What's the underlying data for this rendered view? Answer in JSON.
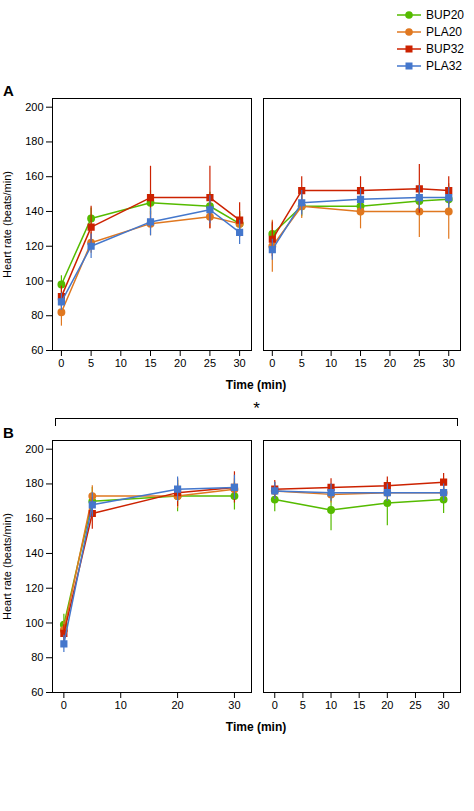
{
  "chart_data": [
    {
      "type": "line",
      "title": "A",
      "ylabel": "Heart rate (beats/min)",
      "xlabel": "Time (min)",
      "legend": "upper right",
      "x": [
        0,
        5,
        15,
        25,
        30
      ],
      "xlim": [
        -1.5,
        32
      ],
      "xticks": [
        0,
        5,
        10,
        15,
        20,
        25,
        30
      ],
      "ylim": [
        60,
        205
      ],
      "yticks": [
        60,
        80,
        100,
        120,
        140,
        160,
        180,
        200
      ],
      "series": [
        {
          "name": "BUP20",
          "color": "#55bb00",
          "marker": "circle",
          "values": [
            98,
            136,
            145,
            143,
            133
          ],
          "errors": [
            5,
            6,
            7,
            8,
            7
          ]
        },
        {
          "name": "PLA20",
          "color": "#e07820",
          "marker": "circle",
          "values": [
            82,
            122,
            133,
            137,
            133
          ],
          "errors": [
            8,
            6,
            7,
            7,
            6
          ]
        },
        {
          "name": "BUP32",
          "color": "#cc2200",
          "marker": "square",
          "values": [
            91,
            131,
            148,
            148,
            135
          ],
          "errors": [
            6,
            12,
            18,
            18,
            10
          ]
        },
        {
          "name": "PLA32",
          "color": "#4477cc",
          "marker": "square",
          "values": [
            88,
            120,
            134,
            141,
            128
          ],
          "errors": [
            5,
            7,
            8,
            8,
            7
          ]
        }
      ]
    },
    {
      "type": "line",
      "tick_labels": "x",
      "x": [
        0,
        5,
        15,
        25,
        30
      ],
      "xlim": [
        -1.5,
        32
      ],
      "xticks": [
        0,
        5,
        10,
        15,
        20,
        25,
        30
      ],
      "ylim": [
        60,
        205
      ],
      "series": [
        {
          "name": "BUP20",
          "color": "#55bb00",
          "marker": "circle",
          "values": [
            127,
            143,
            143,
            146,
            147
          ],
          "errors": [
            6,
            6,
            6,
            6,
            6
          ]
        },
        {
          "name": "PLA20",
          "color": "#e07820",
          "marker": "circle",
          "values": [
            120,
            143,
            140,
            140,
            140
          ],
          "errors": [
            15,
            7,
            10,
            15,
            16
          ]
        },
        {
          "name": "BUP32",
          "color": "#cc2200",
          "marker": "square",
          "values": [
            124,
            152,
            152,
            153,
            152
          ],
          "errors": [
            10,
            8,
            8,
            14,
            8
          ]
        },
        {
          "name": "PLA32",
          "color": "#4477cc",
          "marker": "square",
          "values": [
            118,
            145,
            147,
            148,
            148
          ],
          "errors": [
            6,
            7,
            6,
            7,
            6
          ]
        }
      ]
    },
    {
      "type": "line",
      "title": "B",
      "ylabel": "Heart rate (beats/min)",
      "xlabel": "Time (min)",
      "annotations": [
        "*"
      ],
      "x": [
        0,
        5,
        20,
        30
      ],
      "xlim": [
        -2,
        33
      ],
      "xticks": [
        0,
        10,
        20,
        30
      ],
      "ylim": [
        60,
        205
      ],
      "yticks": [
        60,
        80,
        100,
        120,
        140,
        160,
        180,
        200
      ],
      "series": [
        {
          "name": "BUP20",
          "color": "#55bb00",
          "marker": "circle",
          "values": [
            99,
            170,
            173,
            173
          ],
          "errors": [
            6,
            8,
            9,
            8
          ]
        },
        {
          "name": "PLA20",
          "color": "#e07820",
          "marker": "circle",
          "values": [
            96,
            173,
            173,
            177
          ],
          "errors": [
            5,
            6,
            7,
            6
          ]
        },
        {
          "name": "BUP32",
          "color": "#cc2200",
          "marker": "square",
          "values": [
            94,
            163,
            175,
            178
          ],
          "errors": [
            5,
            9,
            8,
            9
          ]
        },
        {
          "name": "PLA32",
          "color": "#4477cc",
          "marker": "square",
          "values": [
            88,
            168,
            177,
            178
          ],
          "errors": [
            5,
            7,
            7,
            7
          ]
        }
      ]
    },
    {
      "type": "line",
      "tick_labels": "x",
      "x": [
        0,
        10,
        20,
        30
      ],
      "xlim": [
        -2,
        33
      ],
      "xticks": [
        0,
        5,
        10,
        15,
        20,
        25,
        30
      ],
      "ylim": [
        60,
        205
      ],
      "series": [
        {
          "name": "BUP20",
          "color": "#55bb00",
          "marker": "circle",
          "values": [
            171,
            165,
            169,
            171
          ],
          "errors": [
            7,
            12,
            13,
            8
          ]
        },
        {
          "name": "PLA20",
          "color": "#e07820",
          "marker": "circle",
          "values": [
            176,
            174,
            175,
            175
          ],
          "errors": [
            5,
            5,
            5,
            5
          ]
        },
        {
          "name": "BUP32",
          "color": "#cc2200",
          "marker": "square",
          "values": [
            177,
            178,
            179,
            181
          ],
          "errors": [
            5,
            5,
            5,
            5
          ]
        },
        {
          "name": "PLA32",
          "color": "#4477cc",
          "marker": "square",
          "values": [
            176,
            175,
            175,
            175
          ],
          "errors": [
            5,
            5,
            5,
            5
          ]
        }
      ]
    }
  ]
}
